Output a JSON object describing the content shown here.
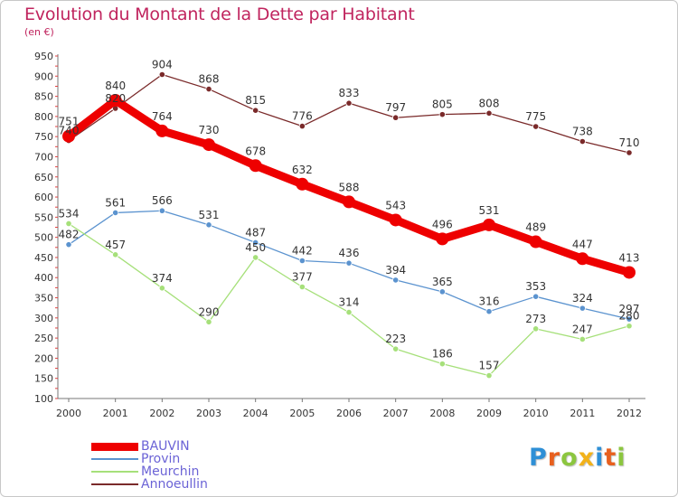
{
  "header": {
    "title": "Evolution du Montant de la Dette par Habitant",
    "subtitle": "(en €)"
  },
  "chart_data": {
    "type": "line",
    "x": [
      2000,
      2001,
      2002,
      2003,
      2004,
      2005,
      2006,
      2007,
      2008,
      2009,
      2010,
      2011,
      2012
    ],
    "ylim": [
      100,
      950
    ],
    "yticks": [
      100,
      150,
      200,
      250,
      300,
      350,
      400,
      450,
      500,
      550,
      600,
      650,
      700,
      750,
      800,
      850,
      900,
      950
    ],
    "grid": false,
    "legend_placement": "bottom-left",
    "series": [
      {
        "name": "Annoeullin",
        "color": "#7a2a2a",
        "values": [
          740,
          820,
          904,
          868,
          815,
          776,
          833,
          797,
          805,
          808,
          775,
          738,
          710
        ],
        "labels": [
          "740",
          "820",
          "904",
          "868",
          "815",
          "776",
          "833",
          "797",
          "805",
          "808",
          "775",
          "738",
          "710"
        ]
      },
      {
        "name": "Provin",
        "color": "#5b93cf",
        "values": [
          482,
          561,
          566,
          531,
          487,
          442,
          436,
          394,
          365,
          316,
          353,
          324,
          297
        ],
        "labels": [
          "482",
          "561",
          "566",
          "531",
          "487",
          "442",
          "436",
          "394",
          "365",
          "316",
          "353",
          "324",
          "297"
        ]
      },
      {
        "name": "Meurchin",
        "color": "#a6e07a",
        "values": [
          534,
          457,
          374,
          290,
          450,
          377,
          314,
          223,
          186,
          157,
          273,
          247,
          280
        ],
        "labels": [
          "534",
          "457",
          "374",
          "290",
          "450",
          "377",
          "314",
          "223",
          "186",
          "157",
          "273",
          "247",
          "280"
        ]
      },
      {
        "name": "BAUVIN",
        "color": "#ee0000",
        "values": [
          751,
          840,
          764,
          730,
          678,
          632,
          588,
          543,
          496,
          531,
          489,
          447,
          413
        ],
        "labels": [
          "751",
          "840",
          "764",
          "730",
          "678",
          "632",
          "588",
          "543",
          "496",
          "531",
          "489",
          "447",
          "413"
        ]
      }
    ]
  },
  "legend": {
    "items": [
      {
        "label": "BAUVIN",
        "color": "#ee0000"
      },
      {
        "label": "Provin",
        "color": "#5b93cf"
      },
      {
        "label": "Meurchin",
        "color": "#a6e07a"
      },
      {
        "label": "Annoeullin",
        "color": "#7a2a2a"
      }
    ]
  },
  "logo": {
    "letters": [
      "P",
      "r",
      "o",
      "x",
      "i",
      "t",
      "i"
    ],
    "colors": [
      "#2e8fd6",
      "#e8601e",
      "#8cc63f",
      "#f2b21a",
      "#2e8fd6",
      "#e8601e",
      "#8cc63f"
    ]
  }
}
